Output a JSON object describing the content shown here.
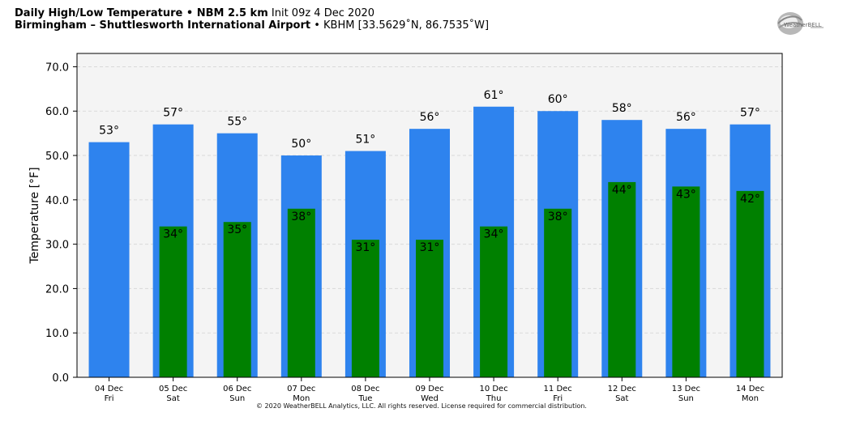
{
  "header": {
    "title_bold": "Daily High/Low Temperature • NBM 2.5 km",
    "title_rest": " Init 09z 4 Dec 2020",
    "location_bold": "Birmingham – Shuttlesworth International Airport",
    "location_rest": " • KBHM [33.5629˚N, 86.7535˚W]"
  },
  "logo": {
    "text": "WeatherBELL"
  },
  "footer": {
    "copyright": "© 2020 WeatherBELL Analytics, LLC. All rights reserved. License required for commercial distribution."
  },
  "colors": {
    "high": "#2e83ee",
    "low": "#008000",
    "plot_bg": "#f4f4f4",
    "grid": "#d9d9d9"
  },
  "chart_data": {
    "type": "bar",
    "title": "Daily High/Low Temperature • NBM 2.5 km",
    "xlabel": "",
    "ylabel": "Temperature [°F]",
    "ylim": [
      0,
      73
    ],
    "yticks": [
      0,
      10,
      20,
      30,
      40,
      50,
      60,
      70
    ],
    "ytick_labels": [
      "0.0",
      "10.0",
      "20.0",
      "30.0",
      "40.0",
      "50.0",
      "60.0",
      "70.0"
    ],
    "grid": true,
    "categories": [
      "04 Dec",
      "05 Dec",
      "06 Dec",
      "07 Dec",
      "08 Dec",
      "09 Dec",
      "10 Dec",
      "11 Dec",
      "12 Dec",
      "13 Dec",
      "14 Dec"
    ],
    "weekdays": [
      "Fri",
      "Sat",
      "Sun",
      "Mon",
      "Tue",
      "Wed",
      "Thu",
      "Fri",
      "Sat",
      "Sun",
      "Mon"
    ],
    "series": [
      {
        "values": [
          53,
          57,
          55,
          50,
          51,
          56,
          61,
          60,
          58,
          56,
          57
        ],
        "labels": [
          "53°",
          "57°",
          "55°",
          "50°",
          "51°",
          "56°",
          "61°",
          "60°",
          "58°",
          "56°",
          "57°"
        ]
      },
      {
        "values": [
          null,
          34,
          35,
          38,
          31,
          31,
          34,
          38,
          44,
          43,
          42
        ],
        "labels": [
          "",
          "34°",
          "35°",
          "38°",
          "31°",
          "31°",
          "34°",
          "38°",
          "44°",
          "43°",
          "42°"
        ]
      }
    ]
  }
}
